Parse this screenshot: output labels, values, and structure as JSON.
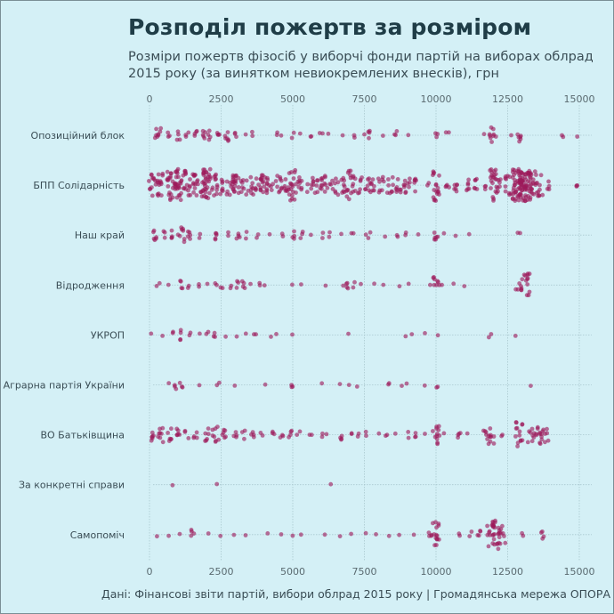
{
  "header": {
    "title": "Розподіл пожертв за розміром",
    "subtitle": "Розміри пожертв фізосіб у виборчі фонди партій на виборах облрад 2015 року (за винятком невиокремлених внесків), грн"
  },
  "footer": {
    "caption": "Дані: Фінансові звіти партій, вибори облрад 2015 року | Громадянська мережа ОПОРА"
  },
  "chart_data": {
    "type": "scatter",
    "subtype": "beeswarm",
    "title": "Розподіл пожертв за розміром",
    "subtitle": "Розміри пожертв фізосіб у виборчі фонди партій на виборах облрад 2015 року (за винятком невиокремлених внесків), грн",
    "xlabel": "",
    "ylabel": "",
    "xlim": [
      0,
      15000
    ],
    "xticks": [
      0,
      2500,
      5000,
      7500,
      10000,
      12500,
      15000
    ],
    "xtick_labels": [
      "0",
      "2500",
      "5000",
      "7500",
      "10000",
      "12500",
      "15000"
    ],
    "x_axis_position": "top-and-bottom",
    "grid": true,
    "point_color": "#9c1a5a",
    "categories": [
      "Опозиційний блок",
      "БПП Солідарність",
      "Наш край",
      "Відродження",
      "УКРОП",
      "Аграрна партія України",
      "ВО Батьківщина",
      "За конкретні справи",
      "Самопоміч"
    ],
    "series": [
      {
        "name": "Опозиційний блок",
        "clusters": [
          [
            300,
            8
          ],
          [
            700,
            3
          ],
          [
            1000,
            4
          ],
          [
            1300,
            3
          ],
          [
            1600,
            4
          ],
          [
            1900,
            5
          ],
          [
            2100,
            4
          ],
          [
            2400,
            4
          ],
          [
            2700,
            6
          ],
          [
            3000,
            3
          ],
          [
            3300,
            1
          ],
          [
            3600,
            2
          ],
          [
            4400,
            2
          ],
          [
            4600,
            1
          ],
          [
            5000,
            2
          ],
          [
            5300,
            1
          ],
          [
            5600,
            2
          ],
          [
            6000,
            2
          ],
          [
            6300,
            1
          ],
          [
            6700,
            1
          ],
          [
            7200,
            2
          ],
          [
            7500,
            1
          ],
          [
            7700,
            4
          ],
          [
            8200,
            1
          ],
          [
            8600,
            3
          ],
          [
            9000,
            1
          ],
          [
            10000,
            3
          ],
          [
            10400,
            2
          ],
          [
            11700,
            1
          ],
          [
            11900,
            8
          ],
          [
            12100,
            1
          ],
          [
            12600,
            1
          ],
          [
            12900,
            6
          ],
          [
            14400,
            2
          ],
          [
            14900,
            1
          ]
        ]
      },
      {
        "name": "БПП Солідарність",
        "clusters": [
          [
            100,
            12
          ],
          [
            400,
            14
          ],
          [
            700,
            18
          ],
          [
            1000,
            28
          ],
          [
            1300,
            16
          ],
          [
            1600,
            14
          ],
          [
            1900,
            14
          ],
          [
            2000,
            22
          ],
          [
            2300,
            12
          ],
          [
            2600,
            10
          ],
          [
            2900,
            10
          ],
          [
            3000,
            12
          ],
          [
            3200,
            8
          ],
          [
            3500,
            10
          ],
          [
            3800,
            8
          ],
          [
            4000,
            14
          ],
          [
            4200,
            8
          ],
          [
            4500,
            10
          ],
          [
            4800,
            8
          ],
          [
            5000,
            18
          ],
          [
            5300,
            8
          ],
          [
            5600,
            8
          ],
          [
            5900,
            8
          ],
          [
            6100,
            10
          ],
          [
            6400,
            8
          ],
          [
            6700,
            10
          ],
          [
            7000,
            16
          ],
          [
            7300,
            8
          ],
          [
            7600,
            8
          ],
          [
            7800,
            6
          ],
          [
            8100,
            8
          ],
          [
            8400,
            8
          ],
          [
            8700,
            8
          ],
          [
            9000,
            10
          ],
          [
            9300,
            6
          ],
          [
            9700,
            2
          ],
          [
            10000,
            18
          ],
          [
            10400,
            4
          ],
          [
            10700,
            6
          ],
          [
            11100,
            6
          ],
          [
            11400,
            6
          ],
          [
            11700,
            3
          ],
          [
            12000,
            22
          ],
          [
            12200,
            6
          ],
          [
            12500,
            10
          ],
          [
            12800,
            30
          ],
          [
            13000,
            40
          ],
          [
            13200,
            30
          ],
          [
            13400,
            16
          ],
          [
            13600,
            12
          ],
          [
            13900,
            4
          ],
          [
            14900,
            3
          ]
        ]
      },
      {
        "name": "Наш край",
        "clusters": [
          [
            200,
            6
          ],
          [
            500,
            3
          ],
          [
            800,
            4
          ],
          [
            1100,
            8
          ],
          [
            1400,
            5
          ],
          [
            1800,
            2
          ],
          [
            2300,
            5
          ],
          [
            2800,
            2
          ],
          [
            3100,
            4
          ],
          [
            3400,
            2
          ],
          [
            3800,
            2
          ],
          [
            4200,
            1
          ],
          [
            4600,
            2
          ],
          [
            5000,
            4
          ],
          [
            5300,
            3
          ],
          [
            5600,
            1
          ],
          [
            6000,
            2
          ],
          [
            6300,
            2
          ],
          [
            6700,
            1
          ],
          [
            7100,
            2
          ],
          [
            7500,
            1
          ],
          [
            7700,
            2
          ],
          [
            8200,
            1
          ],
          [
            8600,
            2
          ],
          [
            8900,
            2
          ],
          [
            9400,
            1
          ],
          [
            10000,
            6
          ],
          [
            10300,
            1
          ],
          [
            10700,
            1
          ],
          [
            11100,
            1
          ],
          [
            12900,
            2
          ]
        ]
      },
      {
        "name": "Відродження",
        "clusters": [
          [
            300,
            2
          ],
          [
            700,
            1
          ],
          [
            1100,
            4
          ],
          [
            1400,
            2
          ],
          [
            1700,
            2
          ],
          [
            2000,
            1
          ],
          [
            2300,
            2
          ],
          [
            2500,
            2
          ],
          [
            2800,
            2
          ],
          [
            3100,
            3
          ],
          [
            3300,
            4
          ],
          [
            3500,
            1
          ],
          [
            3900,
            2
          ],
          [
            4000,
            1
          ],
          [
            5000,
            1
          ],
          [
            5300,
            1
          ],
          [
            6200,
            1
          ],
          [
            6700,
            1
          ],
          [
            6900,
            4
          ],
          [
            7100,
            2
          ],
          [
            7400,
            1
          ],
          [
            7900,
            1
          ],
          [
            8200,
            1
          ],
          [
            8700,
            1
          ],
          [
            9100,
            1
          ],
          [
            9800,
            1
          ],
          [
            10000,
            8
          ],
          [
            10200,
            1
          ],
          [
            10600,
            1
          ],
          [
            11000,
            1
          ],
          [
            12900,
            8
          ],
          [
            13200,
            12
          ]
        ]
      },
      {
        "name": "УКРОП",
        "clusters": [
          [
            100,
            1
          ],
          [
            500,
            1
          ],
          [
            800,
            2
          ],
          [
            1100,
            4
          ],
          [
            1400,
            2
          ],
          [
            1700,
            1
          ],
          [
            2000,
            2
          ],
          [
            2300,
            3
          ],
          [
            2700,
            1
          ],
          [
            3000,
            1
          ],
          [
            3400,
            1
          ],
          [
            3700,
            2
          ],
          [
            4300,
            1
          ],
          [
            4400,
            1
          ],
          [
            5000,
            1
          ],
          [
            7000,
            1
          ],
          [
            8900,
            1
          ],
          [
            9200,
            1
          ],
          [
            9600,
            1
          ],
          [
            10100,
            1
          ],
          [
            11900,
            2
          ],
          [
            12800,
            1
          ]
        ]
      },
      {
        "name": "Аграрна партія України",
        "clusters": [
          [
            700,
            1
          ],
          [
            900,
            3
          ],
          [
            1100,
            3
          ],
          [
            1800,
            1
          ],
          [
            2400,
            2
          ],
          [
            3000,
            1
          ],
          [
            4000,
            1
          ],
          [
            5000,
            3
          ],
          [
            6000,
            1
          ],
          [
            6600,
            1
          ],
          [
            7000,
            1
          ],
          [
            7200,
            1
          ],
          [
            8300,
            1
          ],
          [
            8400,
            1
          ],
          [
            8800,
            1
          ],
          [
            9000,
            1
          ],
          [
            9600,
            1
          ],
          [
            10000,
            2
          ],
          [
            13300,
            1
          ]
        ]
      },
      {
        "name": "ВО Батьківщина",
        "clusters": [
          [
            100,
            6
          ],
          [
            400,
            8
          ],
          [
            700,
            6
          ],
          [
            1000,
            6
          ],
          [
            1300,
            3
          ],
          [
            1600,
            4
          ],
          [
            2000,
            6
          ],
          [
            2300,
            8
          ],
          [
            2600,
            6
          ],
          [
            3000,
            4
          ],
          [
            3300,
            3
          ],
          [
            3600,
            4
          ],
          [
            3900,
            2
          ],
          [
            4300,
            3
          ],
          [
            4600,
            3
          ],
          [
            4900,
            4
          ],
          [
            5200,
            2
          ],
          [
            5600,
            2
          ],
          [
            6000,
            2
          ],
          [
            6200,
            1
          ],
          [
            6700,
            4
          ],
          [
            7000,
            2
          ],
          [
            7300,
            2
          ],
          [
            7500,
            2
          ],
          [
            8000,
            1
          ],
          [
            8300,
            2
          ],
          [
            8600,
            1
          ],
          [
            9000,
            2
          ],
          [
            9300,
            3
          ],
          [
            9600,
            1
          ],
          [
            10000,
            12
          ],
          [
            10300,
            1
          ],
          [
            10800,
            4
          ],
          [
            11100,
            1
          ],
          [
            11700,
            4
          ],
          [
            11900,
            10
          ],
          [
            12300,
            2
          ],
          [
            12900,
            14
          ],
          [
            13300,
            8
          ],
          [
            13600,
            10
          ],
          [
            13800,
            8
          ]
        ]
      },
      {
        "name": "За конкретні справи",
        "clusters": [
          [
            800,
            1
          ],
          [
            2300,
            1
          ],
          [
            6300,
            1
          ]
        ]
      },
      {
        "name": "Самопоміч",
        "clusters": [
          [
            300,
            1
          ],
          [
            700,
            1
          ],
          [
            1100,
            1
          ],
          [
            1500,
            4
          ],
          [
            2000,
            1
          ],
          [
            2500,
            1
          ],
          [
            3000,
            1
          ],
          [
            3300,
            1
          ],
          [
            4100,
            1
          ],
          [
            4600,
            1
          ],
          [
            5000,
            1
          ],
          [
            5300,
            1
          ],
          [
            6100,
            1
          ],
          [
            6600,
            1
          ],
          [
            7000,
            1
          ],
          [
            7500,
            1
          ],
          [
            7900,
            1
          ],
          [
            8400,
            1
          ],
          [
            8700,
            1
          ],
          [
            9200,
            1
          ],
          [
            9800,
            4
          ],
          [
            10000,
            14
          ],
          [
            10800,
            2
          ],
          [
            11200,
            2
          ],
          [
            11500,
            4
          ],
          [
            11900,
            14
          ],
          [
            12100,
            16
          ],
          [
            12300,
            10
          ],
          [
            13000,
            2
          ],
          [
            13700,
            4
          ]
        ]
      }
    ]
  }
}
